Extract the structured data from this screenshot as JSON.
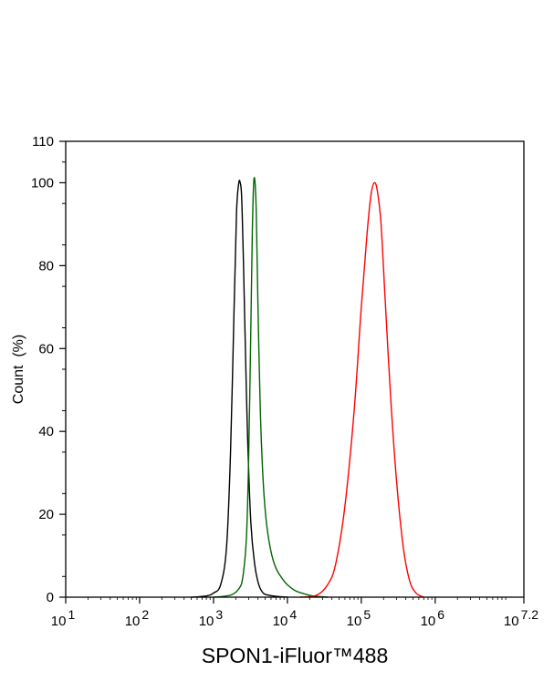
{
  "chart_data": {
    "type": "line",
    "xlabel": "SPON1-iFluor™488",
    "ylabel": "Count  (%)",
    "xscale": "log",
    "xlim": [
      10,
      15848932
    ],
    "ylim": [
      0,
      110
    ],
    "x_ticks": [
      {
        "value": 10,
        "base": "10",
        "exp": "1"
      },
      {
        "value": 100,
        "base": "10",
        "exp": "2"
      },
      {
        "value": 1000,
        "base": "10",
        "exp": "3"
      },
      {
        "value": 10000,
        "base": "10",
        "exp": "4"
      },
      {
        "value": 100000,
        "base": "10",
        "exp": "5"
      },
      {
        "value": 1000000,
        "base": "10",
        "exp": "6"
      },
      {
        "value": 15848932,
        "base": "10",
        "exp": "7.2"
      }
    ],
    "y_ticks": [
      "0",
      "20",
      "40",
      "60",
      "80",
      "100",
      "110"
    ],
    "grid": false,
    "legend": "none",
    "series": [
      {
        "color": "#000000",
        "x": [
          500,
          800,
          1000,
          1250,
          1500,
          1700,
          1900,
          2050,
          2200,
          2300,
          2380,
          2450,
          2550,
          2700,
          2900,
          3200,
          3600,
          4100,
          4700,
          5500,
          7000,
          10000
        ],
        "y": [
          0,
          0.3,
          1,
          3,
          12,
          35,
          70,
          93,
          100,
          100,
          98,
          92,
          80,
          60,
          38,
          18,
          8,
          3,
          1,
          0.5,
          0.2,
          0
        ]
      },
      {
        "color": "#006400",
        "x": [
          1000,
          1700,
          2200,
          2500,
          2800,
          3000,
          3200,
          3350,
          3500,
          3650,
          3800,
          4000,
          4300,
          4700,
          5200,
          6000,
          7000,
          8500,
          10000,
          13000,
          17000,
          22000,
          35000
        ],
        "y": [
          0,
          0.5,
          2,
          5,
          15,
          35,
          65,
          88,
          100,
          100,
          92,
          70,
          45,
          28,
          18,
          11,
          7,
          4.5,
          3,
          1.5,
          0.8,
          0.3,
          0
        ]
      },
      {
        "color": "#ff0000",
        "x": [
          15000,
          25000,
          35000,
          45000,
          60000,
          80000,
          100000,
          120000,
          135000,
          150000,
          165000,
          185000,
          210000,
          250000,
          300000,
          370000,
          450000,
          550000,
          700000
        ],
        "y": [
          0,
          0.5,
          3,
          8,
          22,
          45,
          70,
          88,
          97,
          100,
          98,
          90,
          72,
          48,
          28,
          12,
          4,
          1,
          0
        ]
      }
    ]
  }
}
